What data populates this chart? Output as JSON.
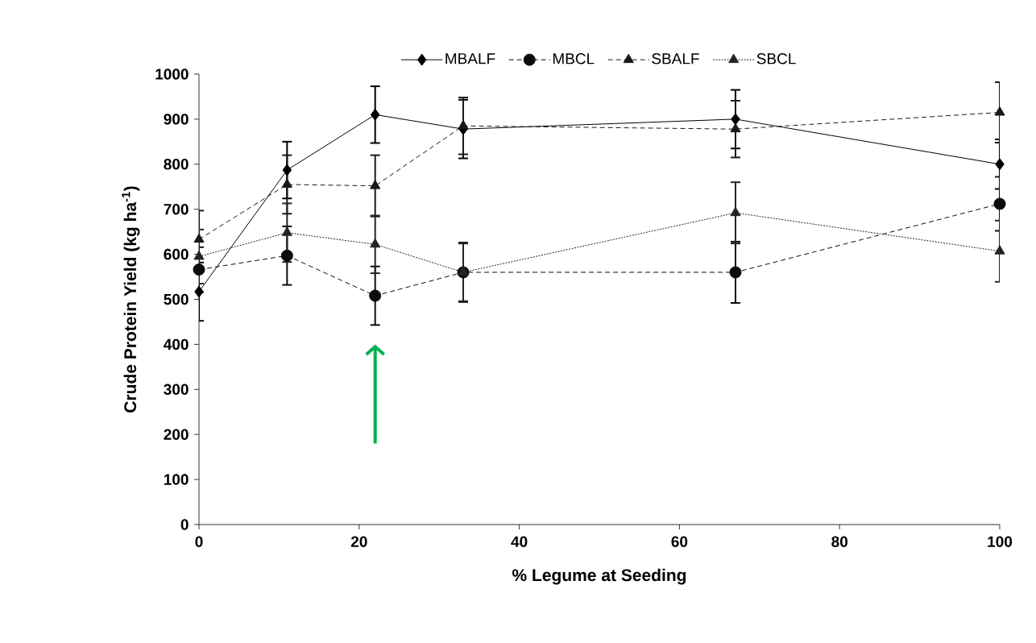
{
  "chart_data": {
    "type": "line",
    "xlabel": "% Legume at Seeding",
    "ylabel": "Crude Protein Yield (kg ha$^{-1}$)",
    "x": [
      0,
      11,
      22,
      33,
      67,
      100
    ],
    "series": [
      {
        "name": "MBALF",
        "color": "#000000",
        "marker": "diamond",
        "line_style": "solid",
        "values": [
          517,
          787,
          910,
          878,
          900,
          800
        ],
        "errors": [
          65,
          63,
          63,
          65,
          65,
          55
        ]
      },
      {
        "name": "MBCL",
        "color": "#0c0c0c",
        "marker": "circle",
        "line_style": "dashed",
        "values": [
          566,
          597,
          508,
          560,
          560,
          712
        ],
        "errors": [
          50,
          65,
          65,
          66,
          68,
          60
        ]
      },
      {
        "name": "SBALF",
        "color": "#181818",
        "marker": "triangle",
        "line_style": "dashed",
        "values": [
          633,
          755,
          752,
          885,
          878,
          915
        ],
        "errors": [
          64,
          65,
          68,
          63,
          63,
          67
        ]
      },
      {
        "name": "SBCL",
        "color": "#242424",
        "marker": "triangle",
        "line_style": "dotted",
        "values": [
          595,
          648,
          622,
          560,
          692,
          607
        ],
        "errors": [
          60,
          65,
          64,
          64,
          68,
          68
        ]
      }
    ],
    "xlim": [
      0,
      100
    ],
    "xticks": [
      0,
      20,
      40,
      60,
      80,
      100
    ],
    "ylim": [
      0,
      1000
    ],
    "yticks": [
      0,
      100,
      200,
      300,
      400,
      500,
      600,
      700,
      800,
      900,
      1000
    ],
    "legend": "top",
    "grid": false
  }
}
